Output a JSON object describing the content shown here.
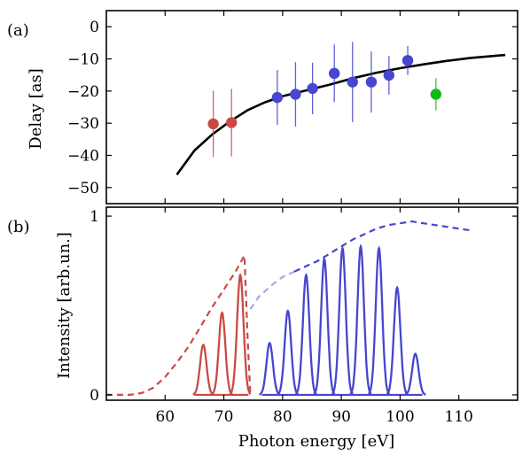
{
  "chart_data": [
    {
      "panel": "(a)",
      "type": "scatter",
      "ylabel": "Delay [as]",
      "xlabel": "",
      "xlim": [
        50,
        120
      ],
      "ylim": [
        -55,
        5
      ],
      "yticks": [
        0,
        -10,
        -20,
        -30,
        -40,
        -50
      ],
      "grid": false,
      "series": [
        {
          "color": "#c94a45",
          "points": [
            {
              "x": 68.2,
              "y": -30.2,
              "err": 10.3
            },
            {
              "x": 71.3,
              "y": -29.8,
              "err": 10.5
            }
          ]
        },
        {
          "color": "#4646cf",
          "points": [
            {
              "x": 79.1,
              "y": -22.0,
              "err": 8.5
            },
            {
              "x": 82.2,
              "y": -21.0,
              "err": 10.0
            },
            {
              "x": 85.1,
              "y": -19.2,
              "err": 8.0
            },
            {
              "x": 88.8,
              "y": -14.5,
              "err": 9.0
            },
            {
              "x": 91.9,
              "y": -17.2,
              "err": 12.5
            },
            {
              "x": 95.1,
              "y": -17.2,
              "err": 9.5
            },
            {
              "x": 98.1,
              "y": -15.1,
              "err": 6.0
            },
            {
              "x": 101.3,
              "y": -10.5,
              "err": 4.5
            }
          ]
        },
        {
          "color": "#11bb11",
          "points": [
            {
              "x": 106.1,
              "y": -21.0,
              "err": 5.0
            }
          ]
        }
      ],
      "theory_curve": {
        "color": "#000000",
        "x": [
          62,
          65,
          68,
          71,
          74,
          77,
          80,
          84,
          88,
          92,
          96,
          100,
          104,
          108,
          112,
          117.9
        ],
        "y": [
          -46.0,
          -38.5,
          -33.5,
          -29.5,
          -26.0,
          -23.5,
          -21.6,
          -19.8,
          -18.0,
          -16.0,
          -14.3,
          -12.9,
          -11.7,
          -10.6,
          -9.7,
          -8.8
        ]
      }
    },
    {
      "panel": "(b)",
      "type": "line",
      "ylabel": "Intensity [arb.un.]",
      "xlabel": "Photon energy [eV]",
      "xlim": [
        50,
        120
      ],
      "ylim": [
        -0.03,
        1.05
      ],
      "xticks": [
        60,
        70,
        80,
        90,
        100,
        110
      ],
      "yticks": [
        0,
        1
      ],
      "grid": false,
      "harmonics": [
        {
          "color": "#c94a45",
          "center": 66.5,
          "amp": 0.28
        },
        {
          "color": "#c94a45",
          "center": 69.7,
          "amp": 0.46
        },
        {
          "color": "#c94a45",
          "center": 72.8,
          "amp": 0.67
        },
        {
          "color": "#4646cf",
          "center": 77.8,
          "amp": 0.29
        },
        {
          "color": "#4646cf",
          "center": 80.9,
          "amp": 0.47
        },
        {
          "color": "#4646cf",
          "center": 84.0,
          "amp": 0.67
        },
        {
          "color": "#4646cf",
          "center": 87.1,
          "amp": 0.76
        },
        {
          "color": "#4646cf",
          "center": 90.2,
          "amp": 0.82
        },
        {
          "color": "#4646cf",
          "center": 93.3,
          "amp": 0.83
        },
        {
          "color": "#4646cf",
          "center": 96.4,
          "amp": 0.82
        },
        {
          "color": "#4646cf",
          "center": 99.5,
          "amp": 0.6
        },
        {
          "color": "#4646cf",
          "center": 102.6,
          "amp": 0.23
        }
      ],
      "harmonic_sigma": 0.55,
      "spectra_dashed": [
        {
          "color": "#c94a45",
          "x": [
            50,
            52,
            54,
            56,
            58,
            60,
            62,
            64,
            66,
            68,
            70,
            72,
            73.5,
            74.0,
            74.5
          ],
          "y": [
            0.0,
            0.0,
            0.0,
            0.01,
            0.04,
            0.1,
            0.18,
            0.27,
            0.38,
            0.49,
            0.59,
            0.69,
            0.78,
            0.35,
            0.0
          ]
        },
        {
          "color": "#a8a8e6",
          "x": [
            74.5,
            76,
            78,
            80,
            82
          ],
          "y": [
            0.48,
            0.55,
            0.61,
            0.66,
            0.69
          ]
        },
        {
          "color": "#4646cf",
          "x": [
            82,
            84,
            86,
            88,
            90,
            92,
            94,
            96,
            98,
            100,
            102,
            104,
            106,
            108,
            110,
            112
          ],
          "y": [
            0.69,
            0.72,
            0.75,
            0.79,
            0.83,
            0.87,
            0.9,
            0.93,
            0.95,
            0.96,
            0.97,
            0.96,
            0.95,
            0.94,
            0.93,
            0.92
          ]
        }
      ]
    }
  ]
}
